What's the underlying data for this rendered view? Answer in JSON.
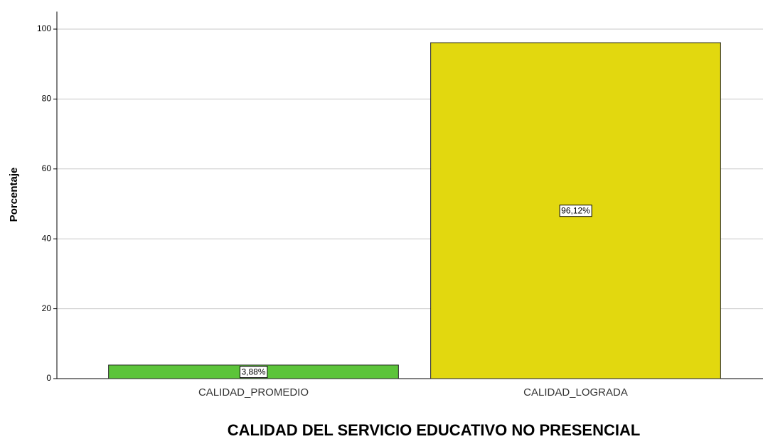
{
  "chart_data": {
    "type": "bar",
    "x_label": "CALIDAD DEL SERVICIO EDUCATIVO NO PRESENCIAL",
    "y_label": "Porcentaje",
    "categories": [
      "CALIDAD_PROMEDIO",
      "CALIDAD_LOGRADA"
    ],
    "values": [
      3.88,
      96.12
    ],
    "value_labels": [
      "3,88%",
      "96,12%"
    ],
    "colors": [
      "#5cc43a",
      "#e2d80f"
    ],
    "ylim": [
      0,
      105
    ],
    "yticks": [
      0,
      20,
      40,
      60,
      80,
      100
    ],
    "grid": true
  }
}
